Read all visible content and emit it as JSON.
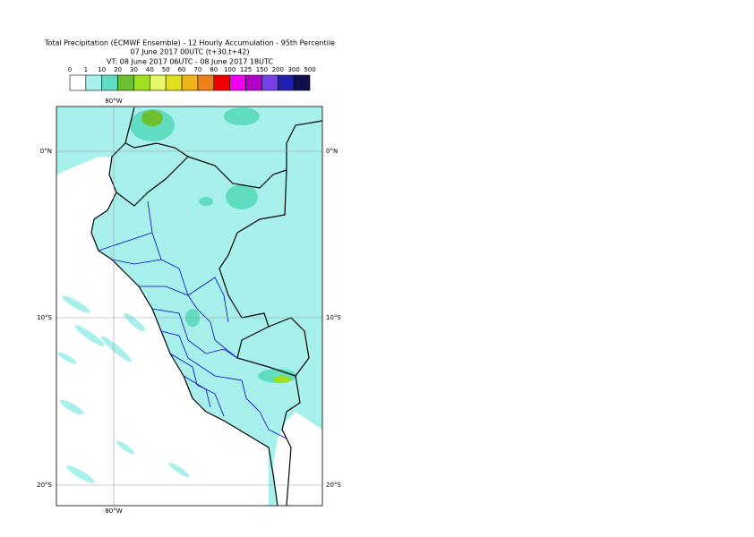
{
  "header": {
    "title": [
      "Total Precipitation (ECMWF Ensemble) - 12 Hourly Accumulation - 95th Percentile",
      "07 June 2017 00UTC (t+30,t+42)",
      "VT: 08 June 2017 06UTC - 08 June 2017 18UTC"
    ]
  },
  "legend": {
    "labels": [
      0,
      1,
      10,
      20,
      30,
      40,
      50,
      60,
      70,
      80,
      100,
      125,
      150,
      200,
      300,
      500
    ],
    "colors": [
      "#ffffff",
      "#a8f0ec",
      "#60dcc0",
      "#6cc030",
      "#a0e020",
      "#e8f868",
      "#e0e020",
      "#f0b418",
      "#f08018",
      "#f00000",
      "#f000f0",
      "#b000c8",
      "#7840e8",
      "#2020b0",
      "#101050"
    ]
  },
  "map": {
    "meridian": "80°W",
    "parallels": [
      "0°N",
      "10°S",
      "20°S"
    ]
  }
}
